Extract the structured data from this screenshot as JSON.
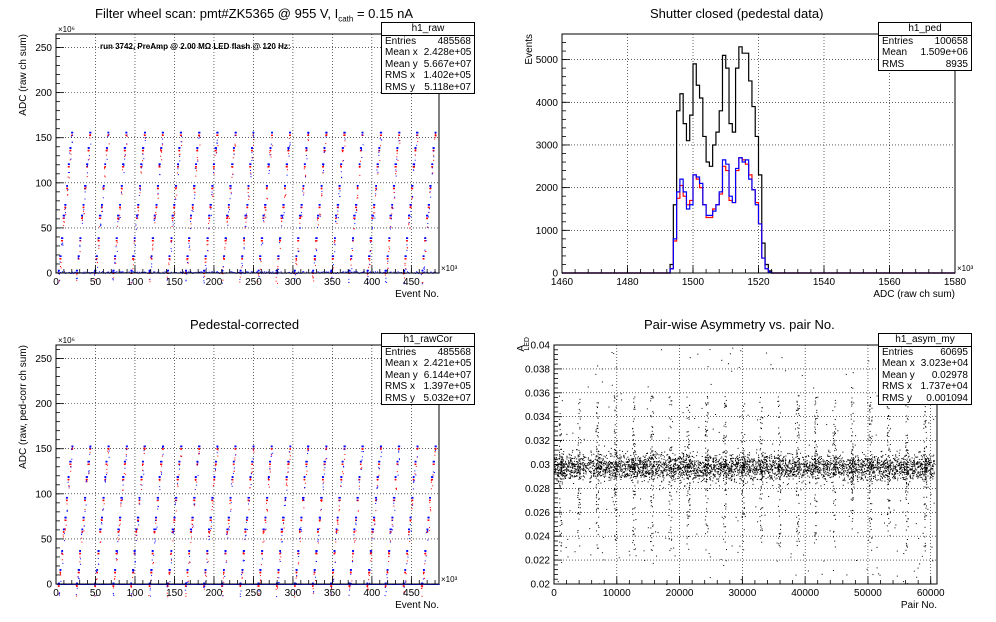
{
  "chart_data": [
    {
      "type": "scatter",
      "id": "raw",
      "title": "Filter wheel scan: pmt#ZK5365 @   955 V, I",
      "title_sub": "cath",
      "title_tail": " = 0.15 nA",
      "annotation": "run 3742, PreAmp @ 2.00 MΩ LED flash @  120 Hz:",
      "xlabel": "Event No.",
      "ylabel": "ADC (raw ch sum)",
      "x_exponent": "×10³",
      "y_exponent": "×10⁶",
      "xlim": [
        0,
        485
      ],
      "ylim": [
        0,
        265
      ],
      "xticks": [
        0,
        50,
        100,
        150,
        200,
        250,
        300,
        350,
        400,
        450
      ],
      "yticks": [
        0,
        50,
        100,
        150,
        200,
        250
      ],
      "grid": true,
      "levels": [
        2,
        18,
        38,
        63,
        75,
        96,
        120,
        138,
        155
      ],
      "period": 23,
      "stats": {
        "name": "h1_raw",
        "rows": [
          [
            "Entries",
            "485568"
          ],
          [
            "Mean x",
            "2.428e+05"
          ],
          [
            "Mean y",
            "5.667e+07"
          ],
          [
            "RMS x",
            "1.402e+05"
          ],
          [
            "RMS y",
            "5.118e+07"
          ]
        ]
      }
    },
    {
      "type": "histogram",
      "id": "ped",
      "title": "Shutter closed (pedestal data)",
      "xlabel": "ADC (raw ch sum)",
      "ylabel": "Events",
      "x_exponent": "×10³",
      "xlim": [
        1460,
        1580
      ],
      "ylim": [
        0,
        5600
      ],
      "xticks": [
        1460,
        1480,
        1500,
        1520,
        1540,
        1560,
        1580
      ],
      "yticks": [
        0,
        1000,
        2000,
        3000,
        4000,
        5000
      ],
      "grid": true,
      "bin_width": 1,
      "x": [
        1492,
        1493,
        1494,
        1495,
        1496,
        1497,
        1498,
        1499,
        1500,
        1501,
        1502,
        1503,
        1504,
        1505,
        1506,
        1507,
        1508,
        1509,
        1510,
        1511,
        1512,
        1513,
        1514,
        1515,
        1516,
        1517,
        1518,
        1519,
        1520,
        1521,
        1522,
        1523,
        1524
      ],
      "series": [
        {
          "name": "total",
          "color": "#000000",
          "values": [
            0,
            200,
            1600,
            3800,
            4200,
            3500,
            3100,
            3700,
            4900,
            4400,
            4100,
            3200,
            2600,
            2500,
            3000,
            3300,
            3800,
            5100,
            4800,
            3500,
            3300,
            4800,
            5300,
            5150,
            5150,
            4500,
            3900,
            3200,
            2300,
            700,
            200,
            50,
            0
          ]
        },
        {
          "name": "red",
          "color": "#ff0000",
          "values": [
            0,
            100,
            750,
            1750,
            2050,
            1800,
            1600,
            1700,
            2300,
            2200,
            2000,
            1600,
            1300,
            1300,
            1500,
            1600,
            1850,
            2500,
            2400,
            1700,
            1650,
            2400,
            2700,
            2650,
            2550,
            2300,
            1950,
            1650,
            1150,
            350,
            100,
            25,
            0
          ]
        },
        {
          "name": "blue",
          "color": "#0000ff",
          "values": [
            0,
            100,
            800,
            1900,
            2200,
            1900,
            1500,
            1600,
            2300,
            2250,
            2100,
            1600,
            1350,
            1350,
            1450,
            1600,
            1900,
            2650,
            2550,
            1800,
            1650,
            2450,
            2700,
            2600,
            2650,
            2200,
            1950,
            1600,
            1150,
            350,
            100,
            25,
            0
          ]
        }
      ],
      "stats": {
        "name": "h1_ped",
        "rows": [
          [
            "Entries",
            "100658"
          ],
          [
            "Mean",
            "1.509e+06"
          ],
          [
            "RMS",
            "8935"
          ]
        ]
      }
    },
    {
      "type": "scatter",
      "id": "rawCor",
      "title": "Pedestal-corrected",
      "xlabel": "Event No.",
      "ylabel": "ADC (raw, ped-corr ch sum)",
      "x_exponent": "×10³",
      "y_exponent": "×10⁶",
      "xlim": [
        0,
        485
      ],
      "ylim": [
        0,
        265
      ],
      "xticks": [
        0,
        50,
        100,
        150,
        200,
        250,
        300,
        350,
        400,
        450
      ],
      "yticks": [
        0,
        50,
        100,
        150,
        200,
        250
      ],
      "grid": true,
      "levels": [
        0,
        15,
        36,
        60,
        73,
        95,
        118,
        135,
        152
      ],
      "period": 23,
      "stats": {
        "name": "h1_rawCor",
        "rows": [
          [
            "Entries",
            "485568"
          ],
          [
            "Mean x",
            "2.421e+05"
          ],
          [
            "Mean y",
            "6.144e+07"
          ],
          [
            "RMS x",
            "1.397e+05"
          ],
          [
            "RMS y",
            "5.032e+07"
          ]
        ]
      }
    },
    {
      "type": "scatter",
      "id": "asym",
      "title": "Pair-wise Asymmetry vs. pair No.",
      "xlabel": "Pair No.",
      "ylabel": "A",
      "ylabel_sub": "LED",
      "xlim": [
        0,
        61000
      ],
      "ylim": [
        0.02,
        0.04
      ],
      "xticks": [
        0,
        10000,
        20000,
        30000,
        40000,
        50000,
        60000
      ],
      "yticks": [
        0.02,
        0.022,
        0.024,
        0.026,
        0.028,
        0.03,
        0.032,
        0.034,
        0.036,
        0.038,
        0.04
      ],
      "grid": true,
      "center": 0.0298,
      "spike_period": 2900,
      "stats": {
        "name": "h1_asym_my",
        "rows": [
          [
            "Entries",
            "60695"
          ],
          [
            "Mean x",
            "3.023e+04"
          ],
          [
            "Mean y",
            "0.02978"
          ],
          [
            "RMS x",
            "1.737e+04"
          ],
          [
            "RMS y",
            "0.001094"
          ]
        ]
      }
    }
  ]
}
